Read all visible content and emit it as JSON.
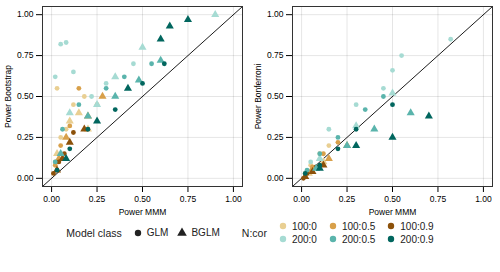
{
  "chart_data": [
    {
      "type": "scatter",
      "xlabel": "Power MMM",
      "ylabel": "Power Bootstrap",
      "xlim": [
        -0.05,
        1.05
      ],
      "ylim": [
        -0.05,
        1.05
      ],
      "grid": true,
      "xticks": [
        {
          "value": 0,
          "label": "0.00"
        },
        {
          "value": 0.25,
          "label": "0.25"
        },
        {
          "value": 0.5,
          "label": "0.50"
        },
        {
          "value": 0.75,
          "label": "0.75"
        },
        {
          "value": 1,
          "label": "1.00"
        }
      ],
      "yticks": [
        {
          "value": 0,
          "label": "0.00"
        },
        {
          "value": 0.25,
          "label": "0.25"
        },
        {
          "value": 0.5,
          "label": "0.50"
        },
        {
          "value": 0.75,
          "label": "0.75"
        },
        {
          "value": 1,
          "label": "1.00"
        }
      ],
      "series": [
        {
          "name": "100:0",
          "color": "#e9cf92",
          "marker": "circle",
          "x": [
            0.02,
            0.05,
            0.08,
            0.12,
            0.03,
            0.18
          ],
          "y": [
            0.1,
            0.25,
            0.3,
            0.45,
            0.55,
            0.5
          ]
        },
        {
          "name": "100:0",
          "color": "#e9cf92",
          "marker": "triangle",
          "x": [
            0.03,
            0.1,
            0.15,
            0.2
          ],
          "y": [
            0.15,
            0.35,
            0.4,
            0.3
          ]
        },
        {
          "name": "100:0.5",
          "color": "#d8a04a",
          "marker": "circle",
          "x": [
            0.02,
            0.05,
            0.1,
            0.15,
            0.25
          ],
          "y": [
            0.08,
            0.2,
            0.32,
            0.55,
            0.45
          ]
        },
        {
          "name": "100:0.5",
          "color": "#d8a04a",
          "marker": "triangle",
          "x": [
            0.04,
            0.08,
            0.2,
            0.28
          ],
          "y": [
            0.12,
            0.25,
            0.38,
            0.5
          ]
        },
        {
          "name": "100:0.9",
          "color": "#8c510a",
          "marker": "circle",
          "x": [
            0.01,
            0.04,
            0.07,
            0.12
          ],
          "y": [
            0.03,
            0.1,
            0.15,
            0.28
          ]
        },
        {
          "name": "100:0.9",
          "color": "#8c510a",
          "marker": "triangle",
          "x": [
            0.03,
            0.06,
            0.1,
            0.18
          ],
          "y": [
            0.05,
            0.12,
            0.22,
            0.3
          ]
        },
        {
          "name": "200:0",
          "color": "#a6dbd3",
          "marker": "circle",
          "x": [
            0.05,
            0.08,
            0.02,
            0.12,
            0.3,
            0.45,
            0.22
          ],
          "y": [
            0.82,
            0.83,
            0.62,
            0.65,
            0.58,
            0.7,
            0.5
          ]
        },
        {
          "name": "200:0",
          "color": "#a6dbd3",
          "marker": "triangle",
          "x": [
            0.1,
            0.35,
            0.5,
            0.9,
            0.25
          ],
          "y": [
            0.4,
            0.62,
            0.8,
            1.0,
            0.45
          ]
        },
        {
          "name": "200:0.5",
          "color": "#5ab4ac",
          "marker": "circle",
          "x": [
            0.02,
            0.06,
            0.15,
            0.3,
            0.4,
            0.55
          ],
          "y": [
            0.1,
            0.3,
            0.45,
            0.55,
            0.62,
            0.7
          ]
        },
        {
          "name": "200:0.5",
          "color": "#5ab4ac",
          "marker": "triangle",
          "x": [
            0.05,
            0.2,
            0.35,
            0.48,
            0.6
          ],
          "y": [
            0.15,
            0.38,
            0.5,
            0.6,
            0.72
          ]
        },
        {
          "name": "200:0.9",
          "color": "#01665e",
          "marker": "circle",
          "x": [
            0.03,
            0.1,
            0.2,
            0.35,
            0.5,
            0.62
          ],
          "y": [
            0.05,
            0.18,
            0.3,
            0.42,
            0.58,
            0.7
          ]
        },
        {
          "name": "200:0.9",
          "color": "#01665e",
          "marker": "triangle",
          "x": [
            0.08,
            0.25,
            0.42,
            0.6,
            0.65,
            0.75
          ],
          "y": [
            0.12,
            0.35,
            0.55,
            0.85,
            0.93,
            0.97
          ]
        }
      ]
    },
    {
      "type": "scatter",
      "xlabel": "Power MMM",
      "ylabel": "Power Bonferroni",
      "xlim": [
        -0.05,
        1.05
      ],
      "ylim": [
        -0.05,
        1.05
      ],
      "grid": true,
      "xticks": [
        {
          "value": 0,
          "label": "0.00"
        },
        {
          "value": 0.25,
          "label": "0.25"
        },
        {
          "value": 0.5,
          "label": "0.50"
        },
        {
          "value": 0.75,
          "label": "0.75"
        },
        {
          "value": 1,
          "label": "1.00"
        }
      ],
      "yticks": [
        {
          "value": 0,
          "label": "0.00"
        },
        {
          "value": 0.25,
          "label": "0.25"
        },
        {
          "value": 0.5,
          "label": "0.50"
        },
        {
          "value": 0.75,
          "label": "0.75"
        },
        {
          "value": 1,
          "label": "1.00"
        }
      ],
      "series": [
        {
          "name": "100:0",
          "color": "#e9cf92",
          "marker": "circle",
          "x": [
            0.02,
            0.05,
            0.1,
            0.15
          ],
          "y": [
            0.03,
            0.08,
            0.15,
            0.2
          ]
        },
        {
          "name": "100:0",
          "color": "#e9cf92",
          "marker": "triangle",
          "x": [
            0.04,
            0.12
          ],
          "y": [
            0.03,
            0.1
          ]
        },
        {
          "name": "100:0.5",
          "color": "#d8a04a",
          "marker": "circle",
          "x": [
            0.02,
            0.06,
            0.12,
            0.2
          ],
          "y": [
            0.02,
            0.07,
            0.15,
            0.22
          ]
        },
        {
          "name": "100:0.5",
          "color": "#d8a04a",
          "marker": "triangle",
          "x": [
            0.05,
            0.15,
            0.25
          ],
          "y": [
            0.04,
            0.12,
            0.2
          ]
        },
        {
          "name": "100:0.9",
          "color": "#8c510a",
          "marker": "circle",
          "x": [
            0.01,
            0.03,
            0.08
          ],
          "y": [
            0.0,
            0.03,
            0.07
          ]
        },
        {
          "name": "100:0.9",
          "color": "#8c510a",
          "marker": "triangle",
          "x": [
            0.02,
            0.06,
            0.12
          ],
          "y": [
            0.01,
            0.04,
            0.08
          ]
        },
        {
          "name": "200:0",
          "color": "#a6dbd3",
          "marker": "circle",
          "x": [
            0.05,
            0.15,
            0.3,
            0.45,
            0.5,
            0.55,
            0.82
          ],
          "y": [
            0.1,
            0.3,
            0.45,
            0.55,
            0.66,
            0.75,
            0.85
          ]
        },
        {
          "name": "200:0",
          "color": "#a6dbd3",
          "marker": "triangle",
          "x": [
            0.1,
            0.3,
            0.5
          ],
          "y": [
            0.12,
            0.32,
            0.52
          ]
        },
        {
          "name": "200:0.5",
          "color": "#5ab4ac",
          "marker": "circle",
          "x": [
            0.03,
            0.1,
            0.2,
            0.35,
            0.45
          ],
          "y": [
            0.05,
            0.15,
            0.25,
            0.42,
            0.5
          ]
        },
        {
          "name": "200:0.5",
          "color": "#5ab4ac",
          "marker": "triangle",
          "x": [
            0.08,
            0.25,
            0.4,
            0.6
          ],
          "y": [
            0.06,
            0.2,
            0.3,
            0.4
          ]
        },
        {
          "name": "200:0.9",
          "color": "#01665e",
          "marker": "circle",
          "x": [
            0.02,
            0.1,
            0.2,
            0.3,
            0.5
          ],
          "y": [
            0.03,
            0.08,
            0.18,
            0.3,
            0.45
          ]
        },
        {
          "name": "200:0.9",
          "color": "#01665e",
          "marker": "triangle",
          "x": [
            0.1,
            0.3,
            0.5,
            0.7
          ],
          "y": [
            0.06,
            0.2,
            0.25,
            0.38
          ]
        }
      ]
    }
  ],
  "legend": "bottom",
  "legends": [
    {
      "title": "Model class",
      "items": [
        {
          "name": "GLM",
          "marker": "circle"
        },
        {
          "name": "BGLM",
          "marker": "triangle"
        }
      ]
    },
    {
      "title": "N:cor"
    }
  ]
}
